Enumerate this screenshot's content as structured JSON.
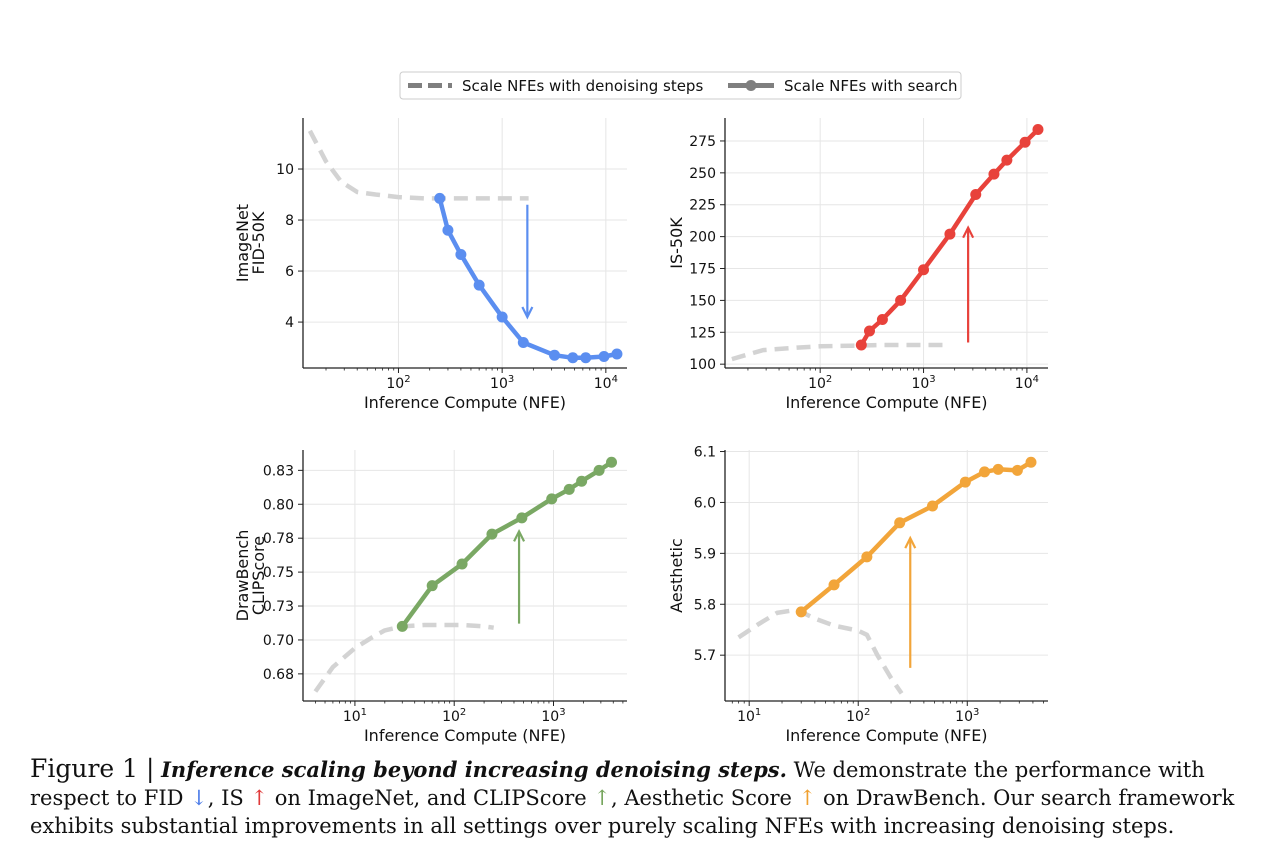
{
  "legend": {
    "items": [
      {
        "label": "Scale NFEs with denoising steps",
        "style": "dashed"
      },
      {
        "label": "Scale NFEs with search",
        "style": "solid-marker"
      }
    ]
  },
  "caption": {
    "label": "Figure 1 |",
    "title": "Inference scaling beyond increasing denoising steps.",
    "text_1": "We demonstrate the performance with respect to FID",
    "arrow_fid": "↓",
    "text_2": ", IS",
    "arrow_is": "↑",
    "text_3": "on ImageNet, and CLIPScore",
    "arrow_clip": "↑",
    "text_4": ", Aesthetic Score",
    "arrow_aes": "↑",
    "text_5": "on DrawBench. Our search framework exhibits substantial improvements in all settings over purely scaling NFEs with increasing denoising steps."
  },
  "chart_data": [
    {
      "type": "line",
      "ylabel_lines": [
        "ImageNet",
        "FID-50K"
      ],
      "xlabel": "Inference Compute (NFE)",
      "xscale": "log",
      "xlim": [
        12,
        16000
      ],
      "ylim": [
        2.2,
        12.0
      ],
      "xticks": [
        100,
        1000,
        10000
      ],
      "xtick_labels": [
        "10^2",
        "10^3",
        "10^4"
      ],
      "yticks": [
        4,
        6,
        8,
        10
      ],
      "ytick_labels": [
        "4",
        "6",
        "8",
        "10"
      ],
      "color": "#5b8ef0",
      "arrow": {
        "x": 1750,
        "from": 8.6,
        "to": 4.2,
        "direction": "down"
      },
      "series": [
        {
          "style": "dashed",
          "x": [
            14,
            20,
            28,
            40,
            60,
            100,
            180,
            300,
            600,
            1000,
            1800
          ],
          "y": [
            11.5,
            10.3,
            9.5,
            9.1,
            9.0,
            8.9,
            8.85,
            8.85,
            8.85,
            8.85,
            8.85
          ]
        },
        {
          "style": "solid",
          "x": [
            250,
            300,
            400,
            600,
            1000,
            1600,
            3200,
            4800,
            6400,
            9600,
            12800
          ],
          "y": [
            8.85,
            7.6,
            6.65,
            5.45,
            4.2,
            3.2,
            2.7,
            2.6,
            2.6,
            2.65,
            2.75
          ]
        }
      ]
    },
    {
      "type": "line",
      "ylabel_lines": [
        "IS-50K"
      ],
      "xlabel": "Inference Compute (NFE)",
      "xscale": "log",
      "xlim": [
        12,
        16000
      ],
      "ylim": [
        97,
        293
      ],
      "xticks": [
        100,
        1000,
        10000
      ],
      "xtick_labels": [
        "10^2",
        "10^3",
        "10^4"
      ],
      "yticks": [
        100,
        125,
        150,
        175,
        200,
        225,
        250,
        275
      ],
      "ytick_labels": [
        "100",
        "125",
        "150",
        "175",
        "200",
        "225",
        "250",
        "275"
      ],
      "color": "#e8423b",
      "arrow": {
        "x": 2700,
        "from": 117,
        "to": 207,
        "direction": "up"
      },
      "series": [
        {
          "style": "dashed",
          "x": [
            14,
            28,
            60,
            100,
            200,
            400,
            1000,
            1800
          ],
          "y": [
            104,
            111,
            113,
            114,
            114.5,
            115,
            115,
            115
          ]
        },
        {
          "style": "solid",
          "x": [
            250,
            300,
            400,
            600,
            1000,
            1800,
            3200,
            4800,
            6400,
            9600,
            12800
          ],
          "y": [
            115,
            126,
            135,
            150,
            174,
            202,
            233,
            249,
            260,
            274,
            284
          ]
        }
      ]
    },
    {
      "type": "line",
      "ylabel_lines": [
        "DrawBench",
        "CLIPScore"
      ],
      "xlabel": "Inference Compute (NFE)",
      "xscale": "log",
      "xlim": [
        3,
        5500
      ],
      "ylim": [
        0.655,
        0.84
      ],
      "xticks": [
        10,
        100,
        1000
      ],
      "xtick_labels": [
        "10^1",
        "10^2",
        "10^3"
      ],
      "yticks": [
        0.675,
        0.7,
        0.725,
        0.75,
        0.775,
        0.8,
        0.825
      ],
      "ytick_labels": [
        "0.68",
        "0.70",
        "0.73",
        "0.75",
        "0.78",
        "0.80",
        "0.83"
      ],
      "color": "#7aa864",
      "arrow": {
        "x": 450,
        "from": 0.712,
        "to": 0.78,
        "direction": "up"
      },
      "series": [
        {
          "style": "dashed",
          "x": [
            4,
            6,
            10,
            15,
            20,
            30,
            50,
            80,
            120,
            200,
            250
          ],
          "y": [
            0.662,
            0.68,
            0.694,
            0.702,
            0.707,
            0.71,
            0.711,
            0.711,
            0.711,
            0.71,
            0.709
          ]
        },
        {
          "style": "solid",
          "x": [
            30,
            60,
            120,
            240,
            480,
            960,
            1440,
            1920,
            2880,
            3840
          ],
          "y": [
            0.71,
            0.74,
            0.756,
            0.778,
            0.79,
            0.804,
            0.811,
            0.817,
            0.825,
            0.831
          ]
        }
      ]
    },
    {
      "type": "line",
      "ylabel_lines": [
        "Aesthetic"
      ],
      "xlabel": "Inference Compute (NFE)",
      "xscale": "log",
      "xlim": [
        6,
        5500
      ],
      "ylim": [
        5.61,
        6.103
      ],
      "xticks": [
        10,
        100,
        1000
      ],
      "xtick_labels": [
        "10^1",
        "10^2",
        "10^3"
      ],
      "yticks": [
        5.7,
        5.8,
        5.9,
        6.0,
        6.1
      ],
      "ytick_labels": [
        "5.7",
        "5.8",
        "5.9",
        "6.0",
        "6.1"
      ],
      "color": "#f2a53a",
      "arrow": {
        "x": 300,
        "from": 5.675,
        "to": 5.93,
        "direction": "up"
      },
      "series": [
        {
          "style": "dashed",
          "x": [
            8,
            12,
            18,
            25,
            30,
            40,
            60,
            100,
            120,
            150,
            200,
            250
          ],
          "y": [
            5.735,
            5.76,
            5.783,
            5.788,
            5.785,
            5.772,
            5.758,
            5.748,
            5.74,
            5.7,
            5.655,
            5.625
          ]
        },
        {
          "style": "solid",
          "x": [
            30,
            60,
            120,
            240,
            480,
            960,
            1440,
            1920,
            2880,
            3840
          ],
          "y": [
            5.785,
            5.838,
            5.893,
            5.96,
            5.993,
            6.04,
            6.06,
            6.065,
            6.063,
            6.079
          ]
        }
      ]
    }
  ]
}
